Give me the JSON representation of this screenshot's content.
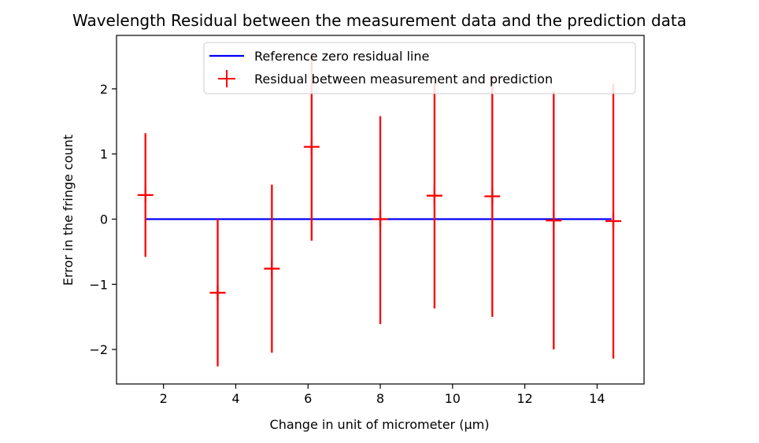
{
  "chart_data": {
    "type": "scatter",
    "title": "Wavelength Residual between the measurement data and the prediction data",
    "xlabel": "Change in unit of micrometer (μm)",
    "ylabel": "Error in the fringe count",
    "xlim": [
      0.7,
      15.3
    ],
    "ylim": [
      -2.53,
      2.82
    ],
    "xticks": [
      2,
      4,
      6,
      8,
      10,
      12,
      14
    ],
    "yticks": [
      -2,
      -1,
      0,
      1,
      2
    ],
    "xtick_labels": [
      "2",
      "4",
      "6",
      "8",
      "10",
      "12",
      "14"
    ],
    "ytick_labels": [
      "−2",
      "−1",
      "0",
      "1",
      "2"
    ],
    "grid": false,
    "legend_position": "top-right",
    "colors": {
      "reference": "#0000ff",
      "residual": "#ff0000"
    },
    "series": [
      {
        "name": "Reference zero residual line",
        "kind": "line",
        "x": [
          1.5,
          14.4
        ],
        "y": [
          0,
          0
        ]
      },
      {
        "name": "Residual between measurement and prediction",
        "kind": "errorbar",
        "marker": "+",
        "x": [
          1.5,
          3.5,
          5.0,
          6.1,
          8.0,
          9.5,
          11.1,
          12.8,
          14.45
        ],
        "y": [
          0.37,
          -1.13,
          -0.76,
          1.11,
          0.0,
          0.36,
          0.35,
          -0.02,
          -0.03
        ],
        "yerr_low": [
          0.95,
          1.13,
          1.29,
          1.44,
          1.61,
          1.73,
          1.85,
          1.98,
          2.11
        ],
        "yerr_high": [
          0.95,
          1.13,
          1.29,
          1.44,
          1.58,
          1.8,
          1.85,
          1.98,
          2.11
        ]
      }
    ]
  }
}
